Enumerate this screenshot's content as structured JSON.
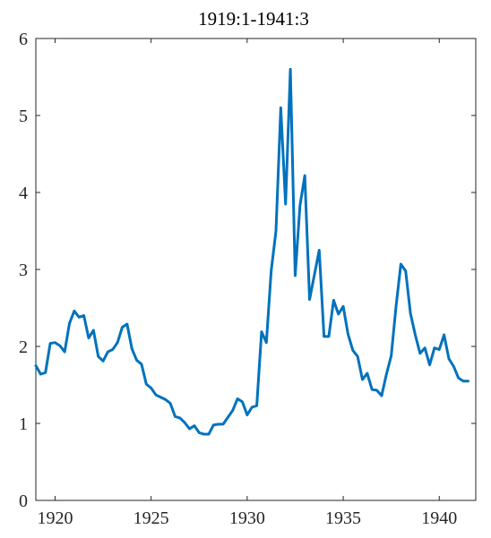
{
  "chart_data": {
    "type": "line",
    "title": "1919:1-1941:3",
    "xlabel": "",
    "ylabel": "",
    "xlim": [
      1919.0,
      1941.9
    ],
    "ylim": [
      0,
      6
    ],
    "xticks": [
      1920,
      1925,
      1930,
      1935,
      1940
    ],
    "yticks": [
      0,
      1,
      2,
      3,
      4,
      5,
      6
    ],
    "grid": false,
    "line_color": "#0072BD",
    "series": [
      {
        "x": [
          1919.0,
          1919.25,
          1919.5,
          1919.75,
          1920.0,
          1920.25,
          1920.5,
          1920.75,
          1921.0,
          1921.25,
          1921.5,
          1921.75,
          1922.0,
          1922.25,
          1922.5,
          1922.75,
          1923.0,
          1923.25,
          1923.5,
          1923.75,
          1924.0,
          1924.25,
          1924.5,
          1924.75,
          1925.0,
          1925.25,
          1925.5,
          1925.75,
          1926.0,
          1926.25,
          1926.5,
          1926.75,
          1927.0,
          1927.25,
          1927.5,
          1927.75,
          1928.0,
          1928.25,
          1928.5,
          1928.75,
          1929.0,
          1929.25,
          1929.5,
          1929.75,
          1930.0,
          1930.25,
          1930.5,
          1930.75,
          1931.0,
          1931.25,
          1931.5,
          1931.75,
          1932.0,
          1932.25,
          1932.5,
          1932.75,
          1933.0,
          1933.25,
          1933.5,
          1933.75,
          1934.0,
          1934.25,
          1934.5,
          1934.75,
          1935.0,
          1935.25,
          1935.5,
          1935.75,
          1936.0,
          1936.25,
          1936.5,
          1936.75,
          1937.0,
          1937.25,
          1937.5,
          1937.75,
          1938.0,
          1938.25,
          1938.5,
          1938.75,
          1939.0,
          1939.25,
          1939.5,
          1939.75,
          1940.0,
          1940.25,
          1940.5,
          1940.75,
          1941.0,
          1941.25,
          1941.5
        ],
        "values": [
          1.75,
          1.64,
          1.66,
          2.04,
          2.05,
          2.01,
          1.93,
          2.3,
          2.46,
          2.38,
          2.4,
          2.11,
          2.21,
          1.87,
          1.81,
          1.93,
          1.96,
          2.05,
          2.25,
          2.29,
          1.97,
          1.82,
          1.77,
          1.51,
          1.46,
          1.37,
          1.34,
          1.31,
          1.26,
          1.09,
          1.07,
          1.01,
          0.93,
          0.97,
          0.88,
          0.86,
          0.86,
          0.98,
          0.99,
          0.99,
          1.08,
          1.17,
          1.32,
          1.28,
          1.11,
          1.21,
          1.23,
          2.19,
          2.05,
          2.98,
          3.5,
          5.1,
          3.85,
          5.6,
          2.92,
          3.83,
          4.22,
          2.61,
          2.93,
          3.25,
          2.13,
          2.13,
          2.6,
          2.42,
          2.52,
          2.16,
          1.95,
          1.87,
          1.57,
          1.65,
          1.44,
          1.43,
          1.36,
          1.64,
          1.88,
          2.52,
          3.07,
          2.98,
          2.43,
          2.15,
          1.91,
          1.98,
          1.76,
          1.98,
          1.96,
          2.15,
          1.84,
          1.74,
          1.59,
          1.55,
          1.55
        ]
      }
    ]
  }
}
